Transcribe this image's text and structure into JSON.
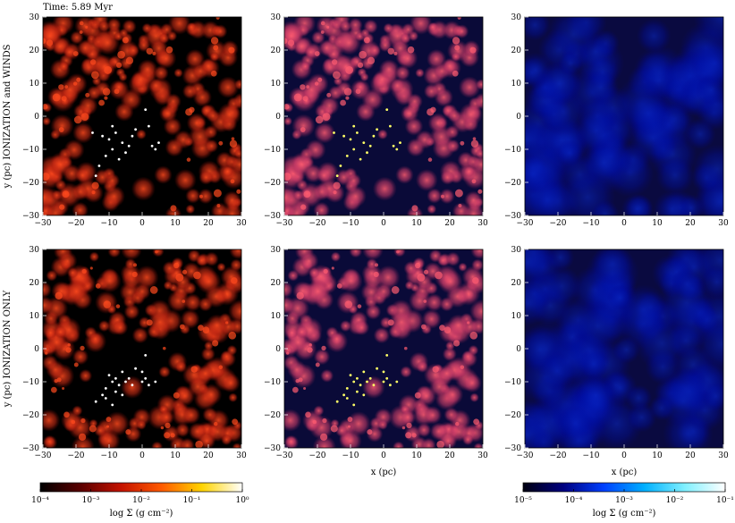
{
  "time_label": "Time: 5.89 Myr",
  "row_labels": [
    "y (pc) IONIZATION and WINDS",
    "y (pc) IONIZATION ONLY"
  ],
  "xlabel": "x (pc)",
  "colorbars": [
    {
      "label": "log Σ (g cm⁻²)",
      "ticks": [
        "10⁻⁴",
        "10⁻³",
        "10⁻²",
        "10⁻¹",
        "10⁰"
      ],
      "colors": [
        "#000000",
        "#5a0000",
        "#c41200",
        "#ff5a00",
        "#ffd400",
        "#ffffff"
      ]
    },
    {
      "label": "log Σ (g cm⁻²)",
      "ticks": [
        "10⁻⁵",
        "10⁻⁴",
        "10⁻³",
        "10⁻²",
        "10⁻¹"
      ],
      "colors": [
        "#000010",
        "#000080",
        "#0040ff",
        "#00b0ff",
        "#80f0ff",
        "#ffffff"
      ]
    }
  ],
  "panel_styles": {
    "gas": {
      "background": "#000000",
      "cloud_colors": [
        "#8a0c06",
        "#c92a14",
        "#ff4a1e"
      ],
      "star_color": "#ffffff"
    },
    "mixed": {
      "background": "#0a0a38",
      "cloud_colors": [
        "#8a2050",
        "#c83a66",
        "#ff5c70"
      ],
      "star_color": "#ffff66"
    },
    "diffuse": {
      "background": "#0a0a40",
      "cloud_colors": [
        "#00008a",
        "#0010a8",
        "#0a28c8"
      ],
      "star_color": "#ffffff"
    }
  },
  "chart_data": [
    {
      "type": "heatmap",
      "row": "IONIZATION and WINDS",
      "panel": 1,
      "xlabel": "",
      "ylabel": "y (pc) IONIZATION and WINDS",
      "xlim": [
        -30,
        30
      ],
      "ylim": [
        -30,
        30
      ],
      "xticks": [
        -30,
        -20,
        -10,
        0,
        10,
        20,
        30
      ],
      "yticks": [
        -30,
        -20,
        -10,
        0,
        10,
        20,
        30
      ],
      "colorbar": 0
    },
    {
      "type": "heatmap",
      "row": "IONIZATION and WINDS",
      "panel": 2,
      "xlabel": "",
      "ylabel": "",
      "xlim": [
        -30,
        30
      ],
      "ylim": [
        -30,
        30
      ],
      "xticks": [
        -30,
        -20,
        -10,
        0,
        10,
        20,
        30
      ],
      "yticks": [
        -30,
        -20,
        -10,
        0,
        10,
        20,
        30
      ]
    },
    {
      "type": "heatmap",
      "row": "IONIZATION and WINDS",
      "panel": 3,
      "xlabel": "",
      "ylabel": "",
      "xlim": [
        -30,
        30
      ],
      "ylim": [
        -30,
        30
      ],
      "xticks": [
        -30,
        -20,
        -10,
        0,
        10,
        20,
        30
      ],
      "yticks": [
        -30,
        -20,
        -10,
        0,
        10,
        20,
        30
      ],
      "colorbar": 1
    },
    {
      "type": "heatmap",
      "row": "IONIZATION ONLY",
      "panel": 1,
      "xlabel": "",
      "ylabel": "y (pc) IONIZATION ONLY",
      "xlim": [
        -30,
        30
      ],
      "ylim": [
        -30,
        30
      ],
      "xticks": [
        -30,
        -20,
        -10,
        0,
        10,
        20,
        30
      ],
      "yticks": [
        -30,
        -20,
        -10,
        0,
        10,
        20,
        30
      ],
      "colorbar": 0
    },
    {
      "type": "heatmap",
      "row": "IONIZATION ONLY",
      "panel": 2,
      "xlabel": "x (pc)",
      "ylabel": "",
      "xlim": [
        -30,
        30
      ],
      "ylim": [
        -30,
        30
      ],
      "xticks": [
        -30,
        -20,
        -10,
        0,
        10,
        20,
        30
      ],
      "yticks": [
        -30,
        -20,
        -10,
        0,
        10,
        20,
        30
      ]
    },
    {
      "type": "heatmap",
      "row": "IONIZATION ONLY",
      "panel": 3,
      "xlabel": "x (pc)",
      "ylabel": "",
      "xlim": [
        -30,
        30
      ],
      "ylim": [
        -30,
        30
      ],
      "xticks": [
        -30,
        -20,
        -10,
        0,
        10,
        20,
        30
      ],
      "yticks": [
        -30,
        -20,
        -10,
        0,
        10,
        20,
        30
      ],
      "colorbar": 1
    }
  ],
  "stars": {
    "winds_row": [
      [
        -12,
        -6
      ],
      [
        -10,
        -7
      ],
      [
        -9,
        -10
      ],
      [
        -11,
        -12
      ],
      [
        -8,
        -5
      ],
      [
        -6,
        -8
      ],
      [
        -4,
        -9
      ],
      [
        -3,
        -6
      ],
      [
        -13,
        -15
      ],
      [
        -14,
        -18
      ],
      [
        -5,
        -11
      ],
      [
        -7,
        -13
      ],
      [
        3,
        -9
      ],
      [
        4,
        -10
      ],
      [
        5,
        -8
      ],
      [
        -2,
        -4
      ],
      [
        -15,
        -5
      ],
      [
        1,
        2
      ],
      [
        2,
        -3
      ],
      [
        -9,
        -3
      ]
    ],
    "ionization_row": [
      [
        -10,
        -8
      ],
      [
        -9,
        -10
      ],
      [
        -8,
        -9
      ],
      [
        -7,
        -11
      ],
      [
        -6,
        -7
      ],
      [
        -5,
        -10
      ],
      [
        -11,
        -12
      ],
      [
        -12,
        -14
      ],
      [
        -8,
        -13
      ],
      [
        -4,
        -9
      ],
      [
        -3,
        -11
      ],
      [
        -6,
        -14
      ],
      [
        0,
        -10
      ],
      [
        1,
        -9
      ],
      [
        2,
        -11
      ],
      [
        4,
        -10
      ],
      [
        0,
        -7
      ],
      [
        -14,
        -16
      ],
      [
        -2,
        -6
      ],
      [
        1,
        -2
      ],
      [
        -9,
        -17
      ],
      [
        -11,
        -15
      ]
    ]
  }
}
